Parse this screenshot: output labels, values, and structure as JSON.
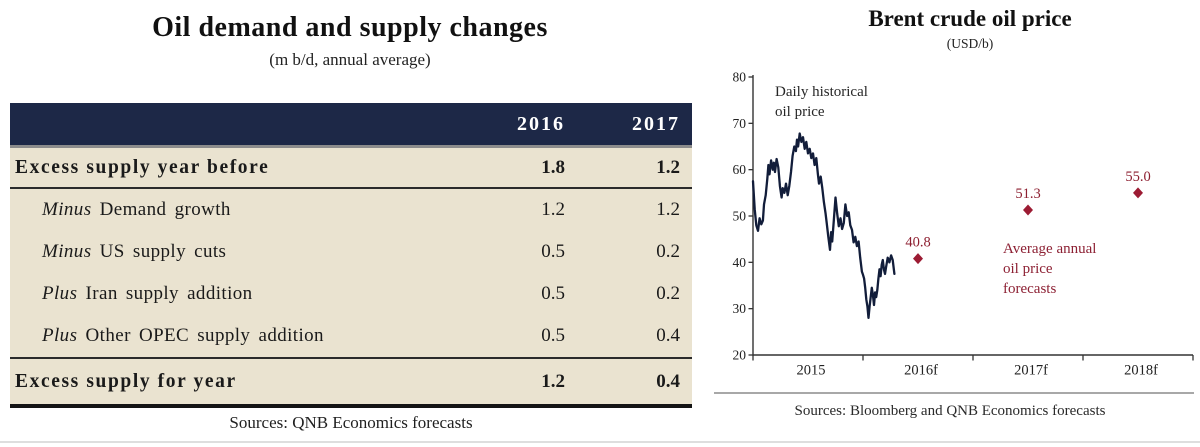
{
  "theme": {
    "navy": "#1d2847",
    "cream": "#eae3d0",
    "maroon": "#9c1b33",
    "linecol": "#121d3a"
  },
  "left_panel": {
    "title": "Oil demand and supply changes",
    "subtitle": "(m b/d, annual average)",
    "source": "Sources: QNB Economics forecasts",
    "table": {
      "columns": [
        "",
        "2016",
        "2017"
      ],
      "rows": [
        {
          "italic_prefix": "",
          "label": "Excess supply year before",
          "v2016": "1.8",
          "v2017": "1.2",
          "bold": true
        },
        {
          "italic_prefix": "Minus",
          "label": "Demand growth",
          "v2016": "1.2",
          "v2017": "1.2",
          "bold": false
        },
        {
          "italic_prefix": "Minus",
          "label": "US supply cuts",
          "v2016": "0.5",
          "v2017": "0.2",
          "bold": false
        },
        {
          "italic_prefix": "Plus",
          "label": "Iran supply addition",
          "v2016": "0.5",
          "v2017": "0.2",
          "bold": false
        },
        {
          "italic_prefix": "Plus",
          "label": "Other OPEC supply addition",
          "v2016": "0.5",
          "v2017": "0.4",
          "bold": false
        },
        {
          "italic_prefix": "",
          "label": "Excess supply for year",
          "v2016": "1.2",
          "v2017": "0.4",
          "bold": true
        }
      ]
    }
  },
  "right_panel": {
    "title": "Brent crude oil price",
    "subtitle": "(USD/b)",
    "source": "Sources: Bloomberg and QNB Economics forecasts",
    "annotations": {
      "historical": "Daily historical\noil price",
      "forecast": "Average annual\noil price\nforecasts"
    }
  },
  "chart_data": {
    "type": "line",
    "title": "Brent crude oil price",
    "subtitle": "(USD/b)",
    "xlabel": "",
    "ylabel": "",
    "ylim": [
      20,
      80
    ],
    "yticks": [
      20,
      30,
      40,
      50,
      60,
      70,
      80
    ],
    "xtick_labels": [
      "2015",
      "2016f",
      "2017f",
      "2018f"
    ],
    "grid": false,
    "legend": "none",
    "series": [
      {
        "name": "Daily historical oil price",
        "type": "line",
        "color": "#121d3a",
        "points": [
          [
            2015.0,
            57.5
          ],
          [
            2015.015,
            51.5
          ],
          [
            2015.03,
            48.0
          ],
          [
            2015.045,
            46.8
          ],
          [
            2015.06,
            49.5
          ],
          [
            2015.075,
            48.2
          ],
          [
            2015.09,
            49.0
          ],
          [
            2015.1,
            52.5
          ],
          [
            2015.115,
            54.5
          ],
          [
            2015.13,
            58.0
          ],
          [
            2015.14,
            61.0
          ],
          [
            2015.15,
            59.0
          ],
          [
            2015.165,
            62.0
          ],
          [
            2015.18,
            60.0
          ],
          [
            2015.19,
            61.5
          ],
          [
            2015.2,
            59.5
          ],
          [
            2015.215,
            62.3
          ],
          [
            2015.23,
            60.5
          ],
          [
            2015.245,
            56.5
          ],
          [
            2015.26,
            54.0
          ],
          [
            2015.27,
            56.0
          ],
          [
            2015.285,
            55.0
          ],
          [
            2015.3,
            57.0
          ],
          [
            2015.315,
            54.5
          ],
          [
            2015.33,
            56.5
          ],
          [
            2015.345,
            59.5
          ],
          [
            2015.36,
            63.0
          ],
          [
            2015.375,
            65.0
          ],
          [
            2015.39,
            64.0
          ],
          [
            2015.4,
            66.5
          ],
          [
            2015.41,
            65.0
          ],
          [
            2015.425,
            67.8
          ],
          [
            2015.44,
            66.0
          ],
          [
            2015.455,
            67.0
          ],
          [
            2015.47,
            64.5
          ],
          [
            2015.485,
            66.0
          ],
          [
            2015.5,
            63.5
          ],
          [
            2015.515,
            64.5
          ],
          [
            2015.53,
            62.5
          ],
          [
            2015.545,
            63.5
          ],
          [
            2015.56,
            61.0
          ],
          [
            2015.575,
            62.5
          ],
          [
            2015.59,
            59.0
          ],
          [
            2015.6,
            57.0
          ],
          [
            2015.615,
            58.5
          ],
          [
            2015.63,
            56.0
          ],
          [
            2015.645,
            53.0
          ],
          [
            2015.66,
            50.5
          ],
          [
            2015.67,
            48.5
          ],
          [
            2015.685,
            45.5
          ],
          [
            2015.7,
            42.7
          ],
          [
            2015.71,
            46.5
          ],
          [
            2015.72,
            44.5
          ],
          [
            2015.735,
            49.0
          ],
          [
            2015.75,
            54.0
          ],
          [
            2015.765,
            50.5
          ],
          [
            2015.78,
            47.8
          ],
          [
            2015.795,
            49.5
          ],
          [
            2015.81,
            47.2
          ],
          [
            2015.825,
            48.5
          ],
          [
            2015.84,
            52.5
          ],
          [
            2015.855,
            50.0
          ],
          [
            2015.87,
            50.8
          ],
          [
            2015.885,
            48.0
          ],
          [
            2015.9,
            47.0
          ],
          [
            2015.915,
            44.3
          ],
          [
            2015.93,
            45.5
          ],
          [
            2015.945,
            43.5
          ],
          [
            2015.96,
            44.5
          ],
          [
            2015.975,
            41.0
          ],
          [
            2015.99,
            38.0
          ],
          [
            2016.0,
            37.3
          ],
          [
            2016.01,
            36.5
          ],
          [
            2016.02,
            34.5
          ],
          [
            2016.03,
            32.0
          ],
          [
            2016.04,
            30.5
          ],
          [
            2016.05,
            28.0
          ],
          [
            2016.06,
            30.5
          ],
          [
            2016.07,
            32.5
          ],
          [
            2016.08,
            34.5
          ],
          [
            2016.09,
            33.0
          ],
          [
            2016.1,
            30.8
          ],
          [
            2016.11,
            33.5
          ],
          [
            2016.12,
            32.5
          ],
          [
            2016.13,
            34.0
          ],
          [
            2016.14,
            36.5
          ],
          [
            2016.15,
            38.5
          ],
          [
            2016.16,
            37.0
          ],
          [
            2016.17,
            39.5
          ],
          [
            2016.18,
            40.5
          ],
          [
            2016.19,
            38.5
          ],
          [
            2016.2,
            37.5
          ],
          [
            2016.21,
            39.0
          ],
          [
            2016.225,
            41.0
          ],
          [
            2016.24,
            40.0
          ],
          [
            2016.255,
            41.5
          ],
          [
            2016.27,
            40.5
          ],
          [
            2016.285,
            37.5
          ]
        ]
      },
      {
        "name": "Average annual oil price forecasts",
        "type": "scatter",
        "marker": "diamond",
        "color": "#9c1b33",
        "label_color": "#8d1f30",
        "points": [
          [
            2016.5,
            40.8
          ],
          [
            2017.5,
            51.3
          ],
          [
            2018.5,
            55.0
          ]
        ],
        "labels": [
          "40.8",
          "51.3",
          "55.0"
        ]
      }
    ]
  }
}
